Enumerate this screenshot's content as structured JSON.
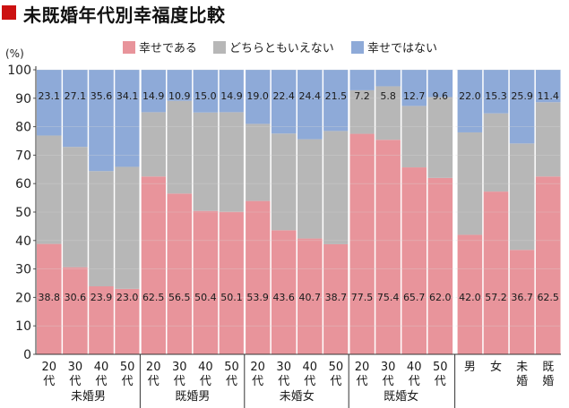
{
  "page": {
    "title": "未既婚年代別幸福度比較",
    "title_mark_color": "#cc1111"
  },
  "chart_data": {
    "type": "bar",
    "stacked": true,
    "title": "未既婚年代別幸福度比較",
    "ylabel": "(%)",
    "ylim": [
      0,
      100
    ],
    "yticks": [
      0,
      10,
      20,
      30,
      40,
      50,
      60,
      70,
      80,
      90,
      100
    ],
    "legend_position": "top-center",
    "categories": [
      [
        "20",
        "代"
      ],
      [
        "30",
        "代"
      ],
      [
        "40",
        "代"
      ],
      [
        "50",
        "代"
      ],
      [
        "20",
        "代"
      ],
      [
        "30",
        "代"
      ],
      [
        "40",
        "代"
      ],
      [
        "50",
        "代"
      ],
      [
        "20",
        "代"
      ],
      [
        "30",
        "代"
      ],
      [
        "40",
        "代"
      ],
      [
        "50",
        "代"
      ],
      [
        "20",
        "代"
      ],
      [
        "30",
        "代"
      ],
      [
        "40",
        "代"
      ],
      [
        "50",
        "代"
      ],
      [
        "男"
      ],
      [
        "女"
      ],
      [
        "未",
        "婚"
      ],
      [
        "既",
        "婚"
      ]
    ],
    "groups": [
      {
        "label": "未婚男",
        "count": 4
      },
      {
        "label": "既婚男",
        "count": 4
      },
      {
        "label": "未婚女",
        "count": 4
      },
      {
        "label": "既婚女",
        "count": 4
      },
      {
        "label": "",
        "count": 4
      }
    ],
    "series": [
      {
        "name": "幸せである",
        "color": "#e8949b",
        "values": [
          38.8,
          30.6,
          23.9,
          23.0,
          62.5,
          56.5,
          50.4,
          50.1,
          53.9,
          43.6,
          40.7,
          38.7,
          77.5,
          75.4,
          65.7,
          62.0,
          42.0,
          57.2,
          36.7,
          62.5
        ]
      },
      {
        "name": "どちらともいえない",
        "color": "#b7b7b7",
        "values": [
          38.1,
          42.3,
          40.5,
          42.9,
          22.6,
          32.6,
          34.6,
          35.0,
          27.1,
          34.0,
          34.9,
          39.8,
          15.3,
          18.8,
          21.6,
          28.4,
          36.0,
          27.5,
          37.4,
          26.1
        ]
      },
      {
        "name": "幸せではない",
        "color": "#8eaad8",
        "values": [
          23.1,
          27.1,
          35.6,
          34.1,
          14.9,
          10.9,
          15.0,
          14.9,
          19.0,
          22.4,
          24.4,
          21.5,
          7.2,
          5.8,
          12.7,
          9.6,
          22.0,
          15.3,
          25.9,
          11.4
        ]
      }
    ],
    "labeled_series": [
      0,
      2
    ]
  }
}
